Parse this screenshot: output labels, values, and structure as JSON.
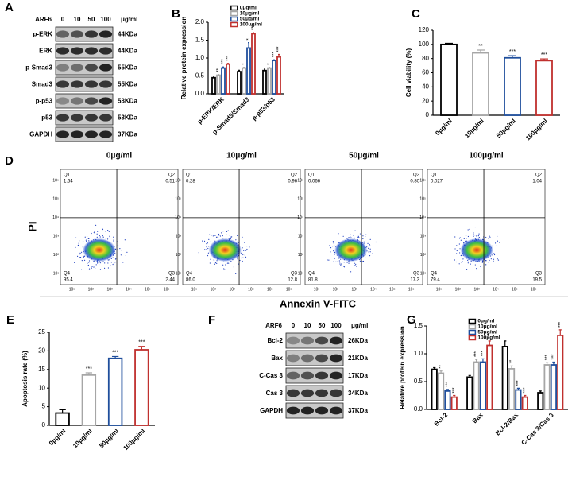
{
  "chart_data": [
    {
      "type": "bar",
      "panel": "B",
      "y_label": "Relative protein expression",
      "categories": [
        "p-ERK/ERK",
        "p-Smad3/Smad3",
        "p-p53/p53"
      ],
      "ylim": [
        0,
        2
      ],
      "yticks": [
        {
          "value": 0,
          "label": "0.0"
        },
        0.5,
        {
          "value": 1,
          "label": "1.0"
        },
        1.5,
        {
          "value": 2,
          "label": "2.0"
        }
      ],
      "legend": "upper left",
      "series": [
        {
          "name": "0μg/ml",
          "color": "#000000",
          "values": [
            0.45,
            0.62,
            0.65
          ],
          "errors": [
            0.02,
            0.04,
            0.04
          ],
          "stars": [
            null,
            null,
            null
          ]
        },
        {
          "name": "10μg/ml",
          "color": "#a6a6a6",
          "values": [
            0.52,
            0.72,
            0.72
          ],
          "errors": [
            0.02,
            0.02,
            0.02
          ],
          "stars": [
            "**",
            "*",
            "*"
          ]
        },
        {
          "name": "50μg/ml",
          "color": "#1f4e9c",
          "values": [
            0.72,
            1.28,
            0.93
          ],
          "errors": [
            0.03,
            0.15,
            0.02
          ],
          "stars": [
            "***",
            "*",
            "***"
          ]
        },
        {
          "name": "100μg/ml",
          "color": "#c0302e",
          "values": [
            0.83,
            1.68,
            1.03
          ],
          "errors": [
            0.02,
            0.03,
            0.07
          ],
          "stars": [
            "***",
            "***",
            "***"
          ]
        }
      ]
    },
    {
      "type": "bar",
      "panel": "C",
      "y_label": "Cell viability (%)",
      "categories": [
        "0μg/ml",
        "10μg/ml",
        "50μg/ml",
        "100μg/ml"
      ],
      "values": [
        100,
        88,
        81,
        77
      ],
      "errors": [
        1.5,
        4,
        3,
        2.5
      ],
      "stars": [
        null,
        "**",
        "***",
        "***"
      ],
      "colors": [
        "#000000",
        "#a6a6a6",
        "#1f4e9c",
        "#c0302e"
      ],
      "ylim": [
        0,
        120
      ],
      "yticks": [
        0,
        20,
        40,
        60,
        80,
        100,
        120
      ]
    },
    {
      "type": "bar",
      "panel": "E",
      "y_label": "Apoptosis rate (%)",
      "categories": [
        "0μg/ml",
        "10μg/ml",
        "50μg/ml",
        "100μg/ml"
      ],
      "values": [
        3.3,
        13.5,
        18,
        20.3
      ],
      "errors": [
        0.9,
        0.6,
        0.5,
        0.9
      ],
      "stars": [
        null,
        "***",
        "***",
        "***"
      ],
      "colors": [
        "#000000",
        "#a6a6a6",
        "#1f4e9c",
        "#c0302e"
      ],
      "ylim": [
        0,
        25
      ],
      "yticks": [
        0,
        5,
        10,
        15,
        20,
        25
      ]
    },
    {
      "type": "bar",
      "panel": "G",
      "y_label": "Relative protein expression",
      "categories": [
        "Bcl-2",
        "Bax",
        "Bcl-2/Bax",
        "C-Cas 3/Cas 3"
      ],
      "ylim": [
        0,
        1.5
      ],
      "yticks": [
        {
          "value": 0,
          "label": "0.0"
        },
        0.5,
        {
          "value": 1,
          "label": "1.0"
        },
        1.5
      ],
      "legend": "upper left",
      "series": [
        {
          "name": "0μg/ml",
          "color": "#000000",
          "values": [
            0.72,
            0.58,
            1.13,
            0.3
          ],
          "errors": [
            0.03,
            0.03,
            0.1,
            0.03
          ],
          "stars": [
            null,
            null,
            null,
            null
          ]
        },
        {
          "name": "10μg/ml",
          "color": "#a6a6a6",
          "values": [
            0.65,
            0.85,
            0.73,
            0.8
          ],
          "errors": [
            0.04,
            0.05,
            0.05,
            0.04
          ],
          "stars": [
            "**",
            "***",
            "**",
            "***"
          ]
        },
        {
          "name": "50μg/ml",
          "color": "#1f4e9c",
          "values": [
            0.33,
            0.85,
            0.35,
            0.8
          ],
          "errors": [
            0.03,
            0.06,
            0.03,
            0.05
          ],
          "stars": [
            "***",
            "***",
            "***",
            "***"
          ]
        },
        {
          "name": "100μg/ml",
          "color": "#c0302e",
          "values": [
            0.22,
            1.15,
            0.22,
            1.33
          ],
          "errors": [
            0.03,
            0.08,
            0.03,
            0.1
          ],
          "stars": [
            "***",
            "***",
            "***",
            "***"
          ]
        }
      ]
    }
  ],
  "blots": [
    {
      "panel": "A",
      "header": "ARF6",
      "doses": [
        "0",
        "10",
        "50",
        "100"
      ],
      "unit": "μg/ml",
      "rows": [
        {
          "name": "p-ERK",
          "size": "44KDa"
        },
        {
          "name": "ERK",
          "size": "44KDa"
        },
        {
          "name": "p-Smad3",
          "size": "55KDa"
        },
        {
          "name": "Smad3",
          "size": "55KDa"
        },
        {
          "name": "p-p53",
          "size": "53KDa"
        },
        {
          "name": "p53",
          "size": "53KDa"
        },
        {
          "name": "GAPDH",
          "size": "37KDa"
        }
      ]
    },
    {
      "panel": "F",
      "header": "ARF6",
      "doses": [
        "0",
        "10",
        "50",
        "100"
      ],
      "unit": "μg/ml",
      "rows": [
        {
          "name": "Bcl-2",
          "size": "26KDa"
        },
        {
          "name": "Bax",
          "size": "21KDa"
        },
        {
          "name": "C-Cas 3",
          "size": "17KDa"
        },
        {
          "name": "Cas 3",
          "size": "34KDa"
        },
        {
          "name": "GAPDH",
          "size": "37KDa"
        }
      ]
    }
  ],
  "flow": {
    "panel": "D",
    "y_label": "PI",
    "x_label": "Annexin V-FITC",
    "ticks": [
      "10¹",
      "10²",
      "10³",
      "10⁴",
      "10⁵",
      "10⁶"
    ],
    "quadrants": [
      "Q1",
      "Q2",
      "Q3",
      "Q4"
    ],
    "plots": [
      {
        "title": "0μg/ml",
        "values": [
          "1.64",
          "0.51",
          "2.44",
          "95.4"
        ]
      },
      {
        "title": "10μg/ml",
        "values": [
          "0.28",
          "0.96",
          "12.8",
          "86.0"
        ]
      },
      {
        "title": "50μg/ml",
        "values": [
          "0.066",
          "0.80",
          "17.3",
          "81.8"
        ]
      },
      {
        "title": "100μg/ml",
        "values": [
          "0.027",
          "1.04",
          "19.5",
          "79.4"
        ]
      }
    ]
  }
}
